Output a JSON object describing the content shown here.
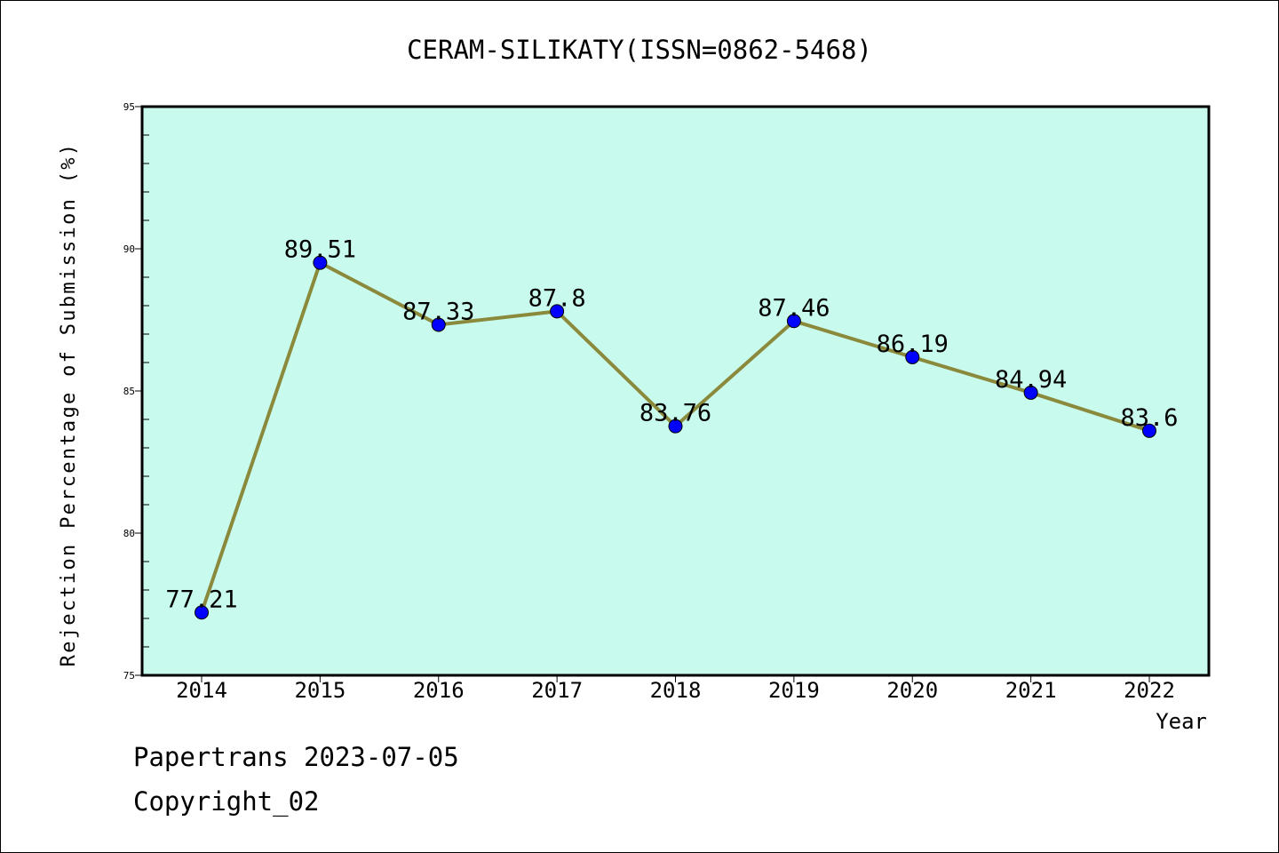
{
  "chart_data": {
    "type": "line",
    "title": "CERAM-SILIKATY(ISSN=0862-5468)",
    "xlabel": "Year",
    "ylabel": "Rejection Percentage of Submission (%)",
    "ylim": [
      75,
      95
    ],
    "yticks": [
      75,
      80,
      85,
      90,
      95
    ],
    "categories": [
      "2014",
      "2015",
      "2016",
      "2017",
      "2018",
      "2019",
      "2020",
      "2021",
      "2022"
    ],
    "values": [
      77.21,
      89.51,
      87.33,
      87.8,
      83.76,
      87.46,
      86.19,
      84.94,
      83.6
    ],
    "data_labels": [
      "77.21",
      "89.51",
      "87.33",
      "87.8",
      "83.76",
      "87.46",
      "86.19",
      "84.94",
      "83.6"
    ],
    "grid": false,
    "colors": {
      "plot_background": "#c8fbee",
      "line": "#8b8a3c",
      "marker": "#0000ff"
    }
  },
  "footer": {
    "line1": "Papertrans 2023-07-05",
    "line2": "Copyright_02"
  }
}
